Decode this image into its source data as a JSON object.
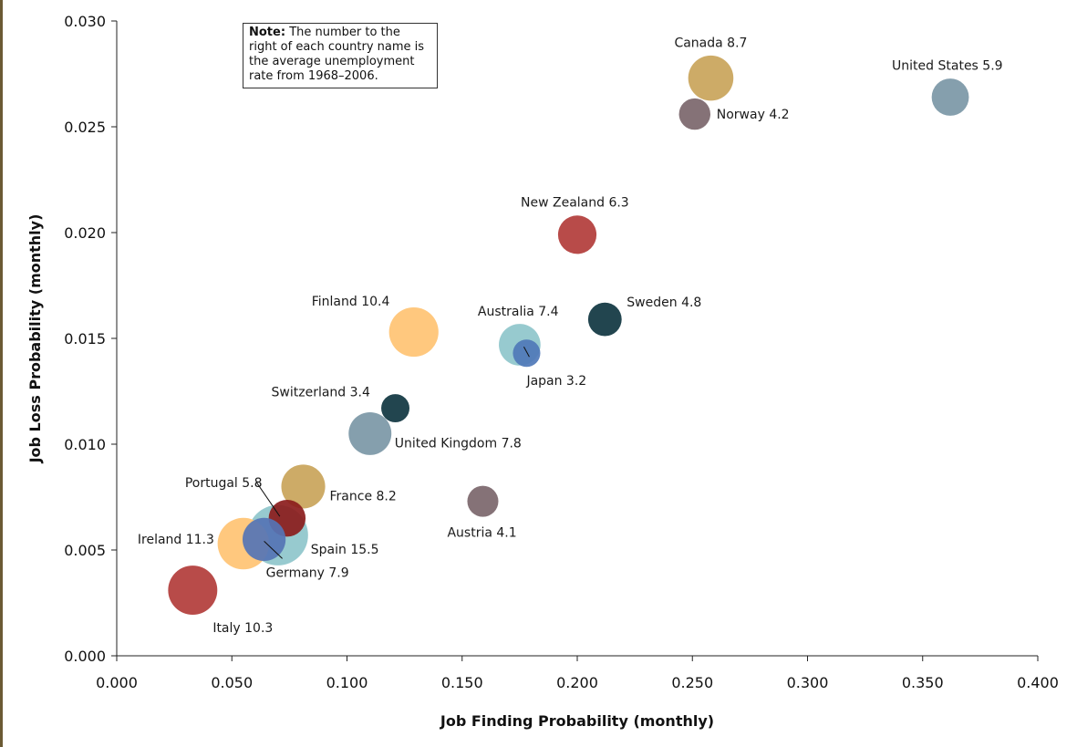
{
  "note": {
    "label": "Note:",
    "text": "The number to the right of each country name is the average unemployment rate from 1968–2006."
  },
  "chart_data": {
    "type": "scatter",
    "title": "",
    "xlabel": "Job Finding Probability (monthly)",
    "ylabel": "Job Loss Probability (monthly)",
    "xlim": [
      0,
      0.4
    ],
    "ylim": [
      0,
      0.03
    ],
    "xticks": [
      "0.000",
      "0.050",
      "0.100",
      "0.150",
      "0.200",
      "0.250",
      "0.300",
      "0.350",
      "0.400"
    ],
    "yticks": [
      "0.000",
      "0.005",
      "0.010",
      "0.015",
      "0.020",
      "0.025",
      "0.030"
    ],
    "grid": false,
    "size_encodes": "average unemployment rate 1968–2006",
    "points": [
      {
        "country": "United States",
        "rate": 5.9,
        "x": 0.362,
        "y": 0.0264,
        "color": "#7b97a6",
        "label": "United States  5.9"
      },
      {
        "country": "Canada",
        "rate": 8.7,
        "x": 0.258,
        "y": 0.0273,
        "color": "#c9a45a",
        "label": "Canada 8.7"
      },
      {
        "country": "Norway",
        "rate": 4.2,
        "x": 0.251,
        "y": 0.0256,
        "color": "#7b666b",
        "label": "Norway  4.2"
      },
      {
        "country": "New Zealand",
        "rate": 6.3,
        "x": 0.2,
        "y": 0.0199,
        "color": "#b23c3a",
        "label": "New Zealand  6.3"
      },
      {
        "country": "Sweden",
        "rate": 4.8,
        "x": 0.212,
        "y": 0.0159,
        "color": "#0f3540",
        "label": "Sweden  4.8"
      },
      {
        "country": "Finland",
        "rate": 10.4,
        "x": 0.129,
        "y": 0.0153,
        "color": "#ffc373",
        "label": "Finland  10.4"
      },
      {
        "country": "Australia",
        "rate": 7.4,
        "x": 0.175,
        "y": 0.0147,
        "color": "#8ec6cb",
        "label": "Australia  7.4"
      },
      {
        "country": "Japan",
        "rate": 3.2,
        "x": 0.178,
        "y": 0.0143,
        "color": "#4f78b8",
        "label": "Japan  3.2"
      },
      {
        "country": "Switzerland",
        "rate": 3.4,
        "x": 0.121,
        "y": 0.0117,
        "color": "#0f3540",
        "label": "Switzerland  3.4"
      },
      {
        "country": "United Kingdom",
        "rate": 7.8,
        "x": 0.11,
        "y": 0.0105,
        "color": "#7b97a6",
        "label": "United Kingdom  7.8"
      },
      {
        "country": "France",
        "rate": 8.2,
        "x": 0.081,
        "y": 0.008,
        "color": "#c9a45a",
        "label": "France  8.2"
      },
      {
        "country": "Austria",
        "rate": 4.1,
        "x": 0.159,
        "y": 0.0073,
        "color": "#7b666b",
        "label": "Austria  4.1"
      },
      {
        "country": "Spain",
        "rate": 15.5,
        "x": 0.07,
        "y": 0.0057,
        "color": "#8ec6cb",
        "label": "Spain  15.5"
      },
      {
        "country": "Portugal",
        "rate": 5.8,
        "x": 0.074,
        "y": 0.0065,
        "color": "#8b1c1c",
        "label": "Portugal  5.8"
      },
      {
        "country": "Ireland",
        "rate": 11.3,
        "x": 0.055,
        "y": 0.0053,
        "color": "#ffc373",
        "label": "Ireland  11.3"
      },
      {
        "country": "Germany",
        "rate": 7.9,
        "x": 0.064,
        "y": 0.0055,
        "color": "#5574b5",
        "label": "Germany  7.9"
      },
      {
        "country": "Italy",
        "rate": 10.3,
        "x": 0.033,
        "y": 0.0031,
        "color": "#b23c3a",
        "label": "Italy  10.3"
      }
    ]
  }
}
